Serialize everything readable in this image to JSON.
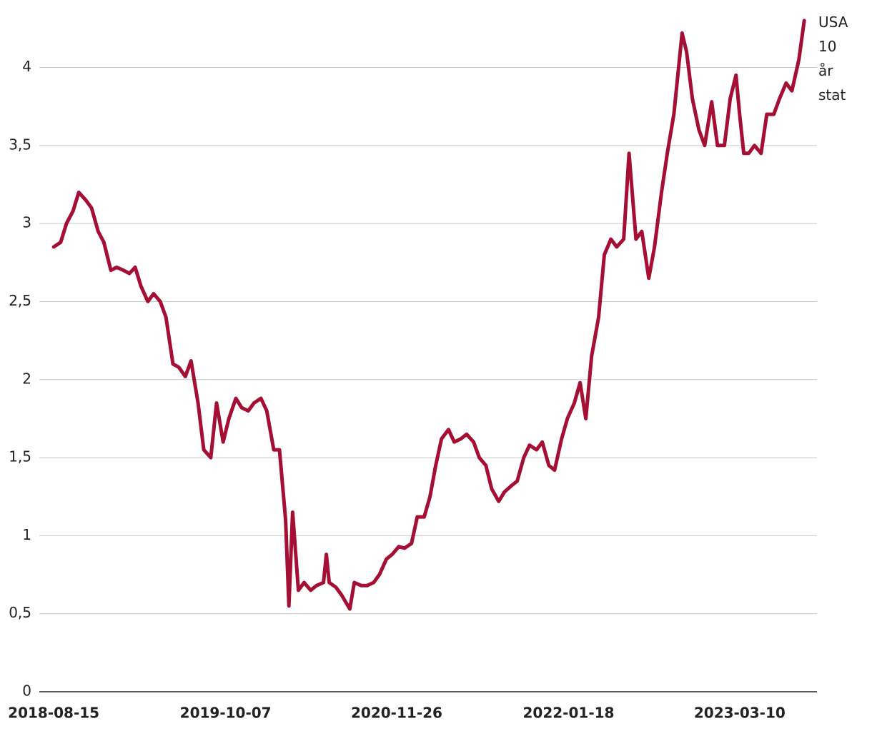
{
  "chart_data": {
    "type": "line",
    "x": [
      "2018-08-15",
      "2018-09-01",
      "2018-09-15",
      "2018-10-01",
      "2018-10-15",
      "2018-11-01",
      "2018-11-15",
      "2018-12-01",
      "2018-12-15",
      "2019-01-01",
      "2019-01-15",
      "2019-02-01",
      "2019-02-15",
      "2019-03-01",
      "2019-03-15",
      "2019-04-01",
      "2019-04-15",
      "2019-05-01",
      "2019-05-15",
      "2019-06-01",
      "2019-06-15",
      "2019-07-01",
      "2019-07-15",
      "2019-08-01",
      "2019-08-15",
      "2019-09-01",
      "2019-09-15",
      "2019-10-01",
      "2019-10-15",
      "2019-11-01",
      "2019-11-15",
      "2019-12-01",
      "2019-12-15",
      "2020-01-01",
      "2020-01-15",
      "2020-02-01",
      "2020-02-15",
      "2020-03-01",
      "2020-03-09",
      "2020-03-18",
      "2020-04-01",
      "2020-04-15",
      "2020-05-01",
      "2020-05-15",
      "2020-06-01",
      "2020-06-08",
      "2020-06-15",
      "2020-07-01",
      "2020-07-15",
      "2020-08-04",
      "2020-08-15",
      "2020-09-01",
      "2020-09-15",
      "2020-10-01",
      "2020-10-15",
      "2020-11-01",
      "2020-11-15",
      "2020-12-01",
      "2020-12-15",
      "2021-01-01",
      "2021-01-15",
      "2021-02-01",
      "2021-02-15",
      "2021-03-01",
      "2021-03-15",
      "2021-04-01",
      "2021-04-15",
      "2021-05-01",
      "2021-05-15",
      "2021-06-01",
      "2021-06-15",
      "2021-07-01",
      "2021-07-15",
      "2021-08-01",
      "2021-08-15",
      "2021-09-01",
      "2021-09-15",
      "2021-10-01",
      "2021-10-15",
      "2021-11-01",
      "2021-11-15",
      "2021-12-01",
      "2021-12-15",
      "2022-01-01",
      "2022-01-15",
      "2022-02-01",
      "2022-02-15",
      "2022-03-01",
      "2022-03-15",
      "2022-04-01",
      "2022-04-15",
      "2022-05-01",
      "2022-05-15",
      "2022-06-01",
      "2022-06-14",
      "2022-07-01",
      "2022-07-15",
      "2022-08-01",
      "2022-08-15",
      "2022-09-01",
      "2022-09-15",
      "2022-10-01",
      "2022-10-21",
      "2022-11-01",
      "2022-11-15",
      "2022-12-01",
      "2022-12-15",
      "2023-01-01",
      "2023-01-15",
      "2023-02-01",
      "2023-02-15",
      "2023-03-01",
      "2023-03-10",
      "2023-03-20",
      "2023-04-01",
      "2023-04-15",
      "2023-05-01",
      "2023-05-15",
      "2023-06-01",
      "2023-06-15",
      "2023-07-01",
      "2023-07-15",
      "2023-08-01",
      "2023-08-14"
    ],
    "series": [
      {
        "name": "USA 10 år stat",
        "color": "#a50f33",
        "values": [
          2.85,
          2.88,
          3.0,
          3.08,
          3.2,
          3.15,
          3.1,
          2.95,
          2.88,
          2.7,
          2.72,
          2.7,
          2.68,
          2.72,
          2.6,
          2.5,
          2.55,
          2.5,
          2.4,
          2.1,
          2.08,
          2.02,
          2.12,
          1.85,
          1.55,
          1.5,
          1.85,
          1.6,
          1.75,
          1.88,
          1.82,
          1.8,
          1.85,
          1.88,
          1.8,
          1.55,
          1.55,
          1.1,
          0.55,
          1.15,
          0.65,
          0.7,
          0.65,
          0.68,
          0.7,
          0.88,
          0.7,
          0.67,
          0.62,
          0.53,
          0.7,
          0.68,
          0.68,
          0.7,
          0.75,
          0.85,
          0.88,
          0.93,
          0.92,
          0.95,
          1.12,
          1.12,
          1.25,
          1.45,
          1.62,
          1.68,
          1.6,
          1.62,
          1.65,
          1.6,
          1.5,
          1.45,
          1.3,
          1.22,
          1.28,
          1.32,
          1.35,
          1.5,
          1.58,
          1.55,
          1.6,
          1.45,
          1.42,
          1.62,
          1.75,
          1.85,
          1.98,
          1.75,
          2.15,
          2.4,
          2.8,
          2.9,
          2.85,
          2.9,
          3.45,
          2.9,
          2.95,
          2.65,
          2.85,
          3.2,
          3.45,
          3.7,
          4.22,
          4.1,
          3.8,
          3.6,
          3.5,
          3.78,
          3.5,
          3.5,
          3.8,
          3.95,
          3.7,
          3.45,
          3.45,
          3.5,
          3.45,
          3.7,
          3.7,
          3.8,
          3.9,
          3.85,
          4.05,
          4.3
        ]
      }
    ],
    "xlim": [
      "2018-07-11",
      "2023-09-14"
    ],
    "xticks": [
      "2018-08-15",
      "2019-10-07",
      "2020-11-26",
      "2022-01-18",
      "2023-03-10"
    ],
    "ylim": [
      0,
      4.35
    ],
    "yticks": [
      0,
      {
        "value": 0.5,
        "label": "0,5"
      },
      1,
      {
        "value": 1.5,
        "label": "1,5"
      },
      2,
      {
        "value": 2.5,
        "label": "2,5"
      },
      3,
      {
        "value": 3.5,
        "label": "3,5"
      },
      4
    ],
    "grid": true
  }
}
